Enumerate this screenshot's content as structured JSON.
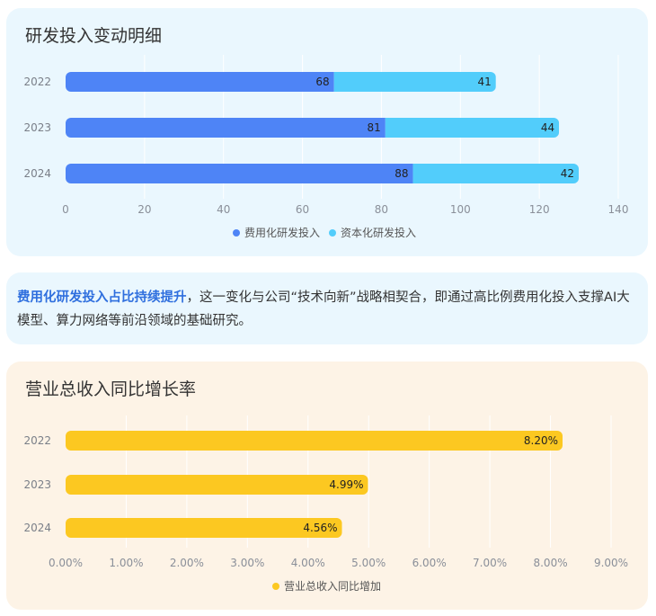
{
  "card1": {
    "title": "研发投入变动明细"
  },
  "note": {
    "highlight": "费用化研发投入占比持续提升",
    "text": "，这一变化与公司“技术向新”战略相契合，即通过高比例费用化投入支撑AI大模型、算力网络等前沿领域的基础研究。"
  },
  "card2": {
    "title": "营业总收入同比增长率"
  },
  "chart_data": [
    {
      "type": "bar",
      "orientation": "horizontal",
      "stacked": true,
      "title": "研发投入变动明细",
      "categories": [
        "2022",
        "2023",
        "2024"
      ],
      "series": [
        {
          "name": "费用化研发投入",
          "values": [
            68,
            81,
            88
          ],
          "labels": [
            "68",
            "81",
            "88"
          ],
          "color": "#4e84f6"
        },
        {
          "name": "资本化研发投入",
          "values": [
            41,
            44,
            42
          ],
          "labels": [
            "41",
            "44",
            "42"
          ],
          "color": "#52cdfb"
        }
      ],
      "xlim": [
        0,
        140
      ],
      "xticks": [
        "0",
        "20",
        "40",
        "60",
        "80",
        "100",
        "120",
        "140"
      ],
      "legend": "bottom",
      "grid": true
    },
    {
      "type": "bar",
      "orientation": "horizontal",
      "title": "营业总收入同比增长率",
      "categories": [
        "2022",
        "2023",
        "2024"
      ],
      "series": [
        {
          "name": "营业总收入同比增加",
          "values": [
            8.2,
            4.99,
            4.56
          ],
          "labels": [
            "8.20%",
            "4.99%",
            "4.56%"
          ],
          "color": "#fcc821"
        }
      ],
      "xlim": [
        0,
        9
      ],
      "xticks": [
        "0.00%",
        "1.00%",
        "2.00%",
        "3.00%",
        "4.00%",
        "5.00%",
        "6.00%",
        "7.00%",
        "8.00%",
        "9.00%"
      ],
      "legend": "bottom",
      "grid": true
    }
  ]
}
